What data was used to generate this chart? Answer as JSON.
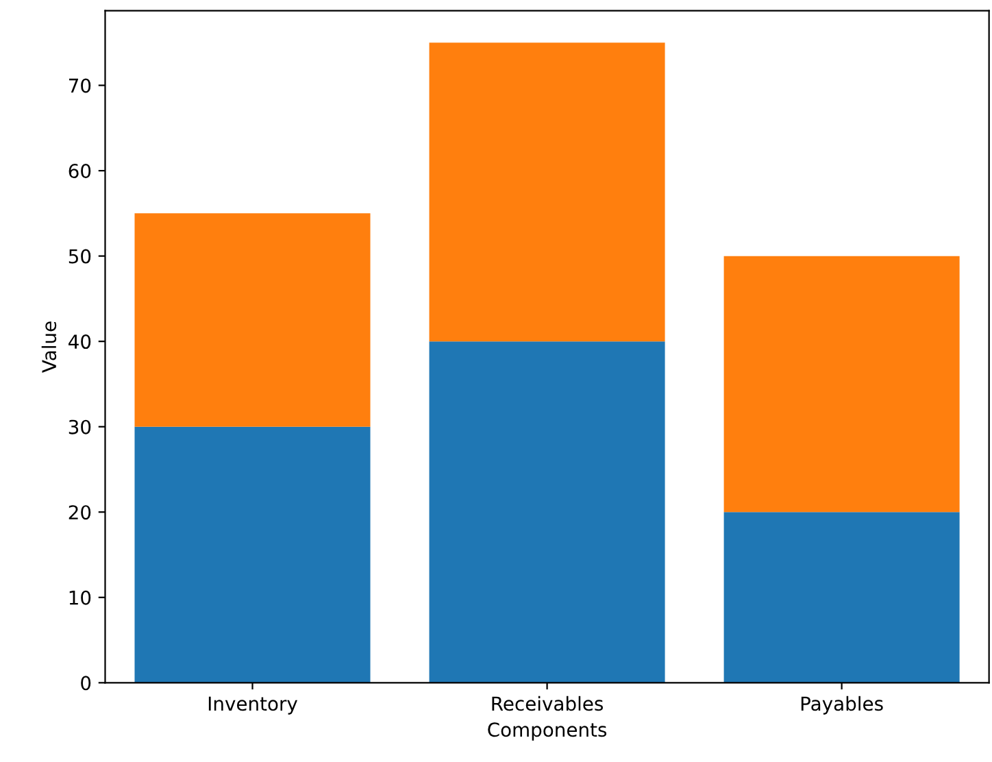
{
  "chart_data": {
    "type": "bar",
    "stacked": true,
    "xlabel": "Components",
    "ylabel": "Value",
    "categories": [
      "Inventory",
      "Receivables",
      "Payables"
    ],
    "series": [
      {
        "color": "#1f77b4",
        "values": [
          30,
          40,
          20
        ]
      },
      {
        "color": "#ff7f0e",
        "values": [
          25,
          35,
          30
        ]
      }
    ],
    "ylim": [
      0,
      78.75
    ],
    "yticks": [
      0,
      10,
      20,
      30,
      40,
      50,
      60,
      70
    ],
    "grid": false
  }
}
